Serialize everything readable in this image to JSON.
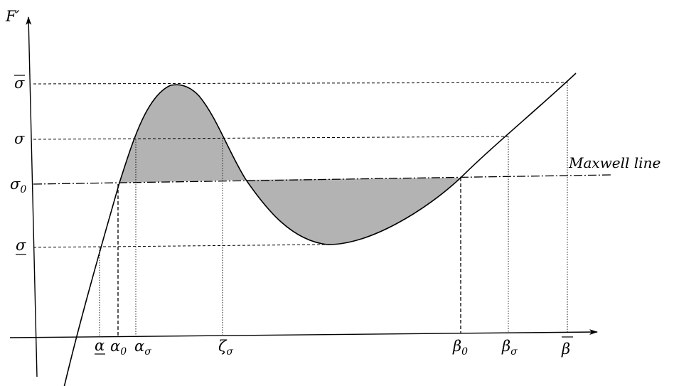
{
  "figure": {
    "y_axis_label": "F′",
    "maxwell_label": "Maxwell line",
    "colors": {
      "shade": "#b3b3b3",
      "ink": "#000000"
    },
    "y_ticks": [
      {
        "id": "sigma-bar",
        "base": "σ",
        "sub": "",
        "bar": "over"
      },
      {
        "id": "sigma",
        "base": "σ",
        "sub": "",
        "bar": ""
      },
      {
        "id": "sigma-0",
        "base": "σ",
        "sub": "0",
        "bar": ""
      },
      {
        "id": "sigma-underline",
        "base": "σ",
        "sub": "",
        "bar": "under"
      }
    ],
    "x_ticks": [
      {
        "id": "alpha-underline",
        "base": "α",
        "sub": "",
        "bar": "under"
      },
      {
        "id": "alpha-0",
        "base": "α",
        "sub": "0",
        "bar": ""
      },
      {
        "id": "alpha-sigma",
        "base": "α",
        "sub": "σ",
        "bar": ""
      },
      {
        "id": "zeta-sigma",
        "base": "ζ",
        "sub": "σ",
        "bar": ""
      },
      {
        "id": "beta-0",
        "base": "β",
        "sub": "0",
        "bar": ""
      },
      {
        "id": "beta-sigma",
        "base": "β",
        "sub": "σ",
        "bar": ""
      },
      {
        "id": "beta-bar",
        "base": "β",
        "sub": "",
        "bar": "over"
      }
    ]
  }
}
